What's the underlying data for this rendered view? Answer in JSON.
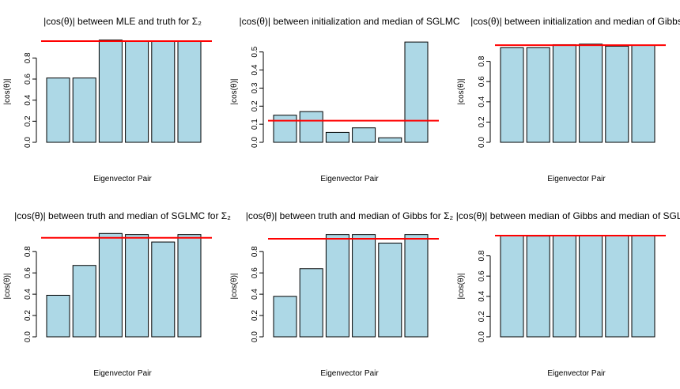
{
  "colors": {
    "bar": "#add8e6",
    "reference_line": "#ff0000"
  },
  "chart_data": [
    {
      "type": "bar",
      "title": "|cos(θ)| between MLE and truth for Σ₂",
      "xlabel": "Eigenvector Pair",
      "ylabel": "|cos(θ)|",
      "ylim": [
        0,
        0.96
      ],
      "yticks": [
        "0.0",
        "0.2",
        "0.4",
        "0.6",
        "0.8"
      ],
      "values": [
        0.61,
        0.61,
        0.97,
        0.96,
        0.96,
        0.96
      ],
      "reference_line": 0.96
    },
    {
      "type": "bar",
      "title": "|cos(θ)| between initialization and median of SGLMC",
      "xlabel": "Eigenvector Pair",
      "ylabel": "|cos(θ)|",
      "ylim": [
        0,
        0.56
      ],
      "yticks": [
        "0.0",
        "0.1",
        "0.2",
        "0.3",
        "0.4",
        "0.5"
      ],
      "values": [
        0.15,
        0.17,
        0.055,
        0.08,
        0.025,
        0.555
      ],
      "reference_line": 0.12
    },
    {
      "type": "bar",
      "title": "|cos(θ)| between initialization and median of Gibbs",
      "xlabel": "Eigenvector Pair",
      "ylabel": "|cos(θ)|",
      "ylim": [
        0,
        1.0
      ],
      "yticks": [
        "0.0",
        "0.2",
        "0.4",
        "0.6",
        "0.8"
      ],
      "values": [
        0.935,
        0.935,
        0.965,
        0.97,
        0.95,
        0.96
      ],
      "reference_line": 0.96
    },
    {
      "type": "bar",
      "title": "|cos(θ)| between truth and median of SGLMC for Σ₂",
      "xlabel": "Eigenvector Pair",
      "ylabel": "|cos(θ)|",
      "ylim": [
        0,
        0.95
      ],
      "yticks": [
        "0.0",
        "0.2",
        "0.4",
        "0.6",
        "0.8"
      ],
      "values": [
        0.39,
        0.67,
        0.97,
        0.96,
        0.89,
        0.96
      ],
      "reference_line": 0.93
    },
    {
      "type": "bar",
      "title": "|cos(θ)| between truth and median of Gibbs for Σ₂",
      "xlabel": "Eigenvector Pair",
      "ylabel": "|cos(θ)|",
      "ylim": [
        0,
        0.95
      ],
      "yticks": [
        "0.0",
        "0.2",
        "0.4",
        "0.6",
        "0.8"
      ],
      "values": [
        0.38,
        0.64,
        0.96,
        0.96,
        0.88,
        0.96
      ],
      "reference_line": 0.92
    },
    {
      "type": "bar",
      "title": "|cos(θ)| between median of Gibbs and median of SGLMC",
      "xlabel": "Eigenvector Pair",
      "ylabel": "|cos(θ)|",
      "ylim": [
        0,
        1.0
      ],
      "yticks": [
        "0.0",
        "0.2",
        "0.4",
        "0.6",
        "0.8"
      ],
      "values": [
        1.0,
        0.995,
        1.0,
        1.0,
        1.0,
        1.0
      ],
      "reference_line": 1.0
    }
  ]
}
